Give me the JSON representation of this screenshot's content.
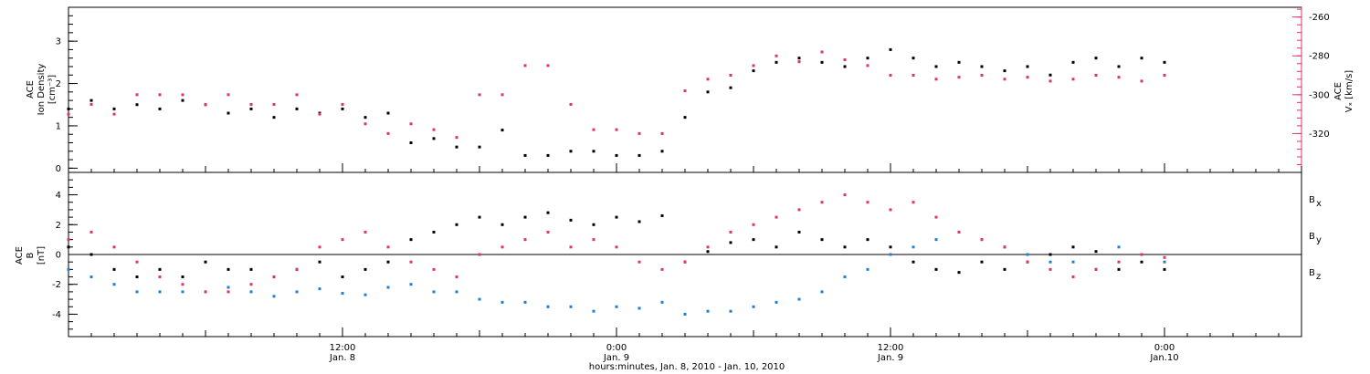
{
  "chart_data": [
    {
      "type": "scatter",
      "panel": "top",
      "ylabel_left": [
        "ACE",
        "Ion Density",
        "[cm⁻³]"
      ],
      "ylabel_right": [
        "ACE",
        "Vₓ [km/s]"
      ],
      "ylim_left": [
        -0.1,
        3.8
      ],
      "yticks_left": [
        0,
        1,
        2,
        3
      ],
      "ylim_right": [
        -340,
        -255
      ],
      "yticks_right": [
        -260,
        -280,
        -300,
        -320
      ],
      "right_axis_color": "#dc3566",
      "series": [
        {
          "name": "density",
          "axis": "left",
          "color": "#000000",
          "x": [
            0,
            1,
            2,
            3,
            4,
            5,
            6,
            7,
            8,
            9,
            10,
            11,
            12,
            13,
            14,
            15,
            16,
            17,
            18,
            19,
            20,
            21,
            22,
            23,
            24,
            25,
            26,
            27,
            28,
            29,
            30,
            31,
            32,
            33,
            34,
            35,
            36,
            37,
            38,
            39,
            40,
            41,
            42,
            43,
            44,
            45,
            46,
            47,
            48
          ],
          "y": [
            1.4,
            1.6,
            1.4,
            1.5,
            1.4,
            1.6,
            1.5,
            1.3,
            1.4,
            1.2,
            1.4,
            1.3,
            1.4,
            1.2,
            1.3,
            0.6,
            0.7,
            0.5,
            0.5,
            0.9,
            0.3,
            0.3,
            0.4,
            0.4,
            0.3,
            0.3,
            0.4,
            1.2,
            1.8,
            1.9,
            2.3,
            2.5,
            2.6,
            2.5,
            2.4,
            2.6,
            2.8,
            2.6,
            2.4,
            2.5,
            2.4,
            2.3,
            2.4,
            2.2,
            2.5,
            2.6,
            2.4,
            2.6,
            2.5
          ]
        },
        {
          "name": "vx",
          "axis": "right",
          "color": "#dc3566",
          "x": [
            0,
            1,
            2,
            3,
            4,
            5,
            6,
            7,
            8,
            9,
            10,
            11,
            12,
            13,
            14,
            15,
            16,
            17,
            18,
            19,
            20,
            21,
            22,
            23,
            24,
            25,
            26,
            27,
            28,
            29,
            30,
            31,
            32,
            33,
            34,
            35,
            36,
            37,
            38,
            39,
            40,
            41,
            42,
            43,
            44,
            45,
            46,
            47,
            48
          ],
          "y": [
            -310,
            -305,
            -310,
            -300,
            -300,
            -300,
            -305,
            -300,
            -305,
            -305,
            -300,
            -310,
            -305,
            -315,
            -320,
            -315,
            -318,
            -322,
            -300,
            -300,
            -285,
            -285,
            -305,
            -318,
            -318,
            -320,
            -320,
            -298,
            -292,
            -290,
            -285,
            -280,
            -283,
            -278,
            -282,
            -285,
            -290,
            -290,
            -292,
            -291,
            -290,
            -292,
            -291,
            -293,
            -292,
            -290,
            -291,
            -293,
            -290
          ]
        }
      ]
    },
    {
      "type": "scatter",
      "panel": "bottom",
      "ylabel_left": [
        "ACE",
        "B",
        "[nT]"
      ],
      "ylim": [
        -5.5,
        5.5
      ],
      "yticks": [
        -4,
        -2,
        0,
        2,
        4
      ],
      "zero_line": true,
      "legend": [
        {
          "label": "B",
          "sub": "x",
          "color": "#000000"
        },
        {
          "label": "B",
          "sub": "y",
          "color": "#1f7fd6"
        },
        {
          "label": "B",
          "sub": "z",
          "color": "#dc3566"
        }
      ],
      "series": [
        {
          "name": "Bx",
          "color": "#000000",
          "x": [
            0,
            1,
            2,
            3,
            4,
            5,
            6,
            7,
            8,
            9,
            10,
            11,
            12,
            13,
            14,
            15,
            16,
            17,
            18,
            19,
            20,
            21,
            22,
            23,
            24,
            25,
            26,
            27,
            28,
            29,
            30,
            31,
            32,
            33,
            34,
            35,
            36,
            37,
            38,
            39,
            40,
            41,
            42,
            43,
            44,
            45,
            46,
            47,
            48
          ],
          "y": [
            0.5,
            0,
            -1,
            -1.5,
            -1,
            -1.5,
            -0.5,
            -1,
            -1,
            -1.5,
            -1,
            -0.5,
            -1.5,
            -1,
            -0.5,
            1,
            1.5,
            2,
            2.5,
            2,
            2.5,
            2.8,
            2.3,
            2,
            2.5,
            2.2,
            2.6,
            -0.5,
            0.2,
            0.8,
            1,
            0.5,
            1.5,
            1,
            0.5,
            1,
            0.5,
            -0.5,
            -1,
            -1.2,
            -0.5,
            -1,
            -0.5,
            0,
            0.5,
            0.2,
            -1,
            -0.5,
            -1
          ]
        },
        {
          "name": "By",
          "color": "#1f7fd6",
          "x": [
            0,
            1,
            2,
            3,
            4,
            5,
            6,
            7,
            8,
            9,
            10,
            11,
            12,
            13,
            14,
            15,
            16,
            17,
            18,
            19,
            20,
            21,
            22,
            23,
            24,
            25,
            26,
            27,
            28,
            29,
            30,
            31,
            32,
            33,
            34,
            35,
            36,
            37,
            38,
            39,
            40,
            41,
            42,
            43,
            44,
            45,
            46,
            47,
            48
          ],
          "y": [
            -1,
            -1.5,
            -2,
            -2.5,
            -2.5,
            -2.5,
            -2.5,
            -2.2,
            -2.5,
            -2.8,
            -2.5,
            -2.3,
            -2.6,
            -2.7,
            -2.2,
            -2,
            -2.5,
            -2.5,
            -3,
            -3.2,
            -3.2,
            -3.5,
            -3.5,
            -3.8,
            -3.5,
            -3.6,
            -3.2,
            -4,
            -3.8,
            -3.8,
            -3.5,
            -3.2,
            -3,
            -2.5,
            -1.5,
            -1,
            0,
            0.5,
            1,
            1.5,
            1,
            0.5,
            0,
            -0.5,
            -0.5,
            -1,
            0.5,
            0,
            -0.5
          ]
        },
        {
          "name": "Bz",
          "color": "#dc3566",
          "x": [
            0,
            1,
            2,
            3,
            4,
            5,
            6,
            7,
            8,
            9,
            10,
            11,
            12,
            13,
            14,
            15,
            16,
            17,
            18,
            19,
            20,
            21,
            22,
            23,
            24,
            25,
            26,
            27,
            28,
            29,
            30,
            31,
            32,
            33,
            34,
            35,
            36,
            37,
            38,
            39,
            40,
            41,
            42,
            43,
            44,
            45,
            46,
            47,
            48
          ],
          "y": [
            1,
            1.5,
            0.5,
            -0.5,
            -1.5,
            -2,
            -2.5,
            -2.5,
            -2,
            -1.5,
            -1,
            0.5,
            1,
            1.5,
            0.5,
            -0.5,
            -1,
            -1.5,
            0,
            0.5,
            1,
            1.5,
            0.5,
            1,
            0.5,
            -0.5,
            -1,
            -0.5,
            0.5,
            1.5,
            2,
            2.5,
            3,
            3.5,
            4,
            3.5,
            3,
            3.5,
            2.5,
            1.5,
            1,
            0.5,
            -0.5,
            -1,
            -1.5,
            -1,
            -0.5,
            0,
            -0.2
          ]
        }
      ]
    }
  ],
  "x_axis": {
    "range_hours": [
      0,
      54
    ],
    "major_ticks": [
      {
        "hour": 12,
        "line1": "12:00",
        "line2": "Jan. 8"
      },
      {
        "hour": 24,
        "line1": "0:00",
        "line2": "Jan. 9"
      },
      {
        "hour": 36,
        "line1": "12:00",
        "line2": "Jan. 9"
      },
      {
        "hour": 48,
        "line1": "0:00",
        "line2": "Jan.10"
      }
    ],
    "xlabel": "hours:minutes, Jan.  8, 2010 - Jan. 10, 2010"
  }
}
